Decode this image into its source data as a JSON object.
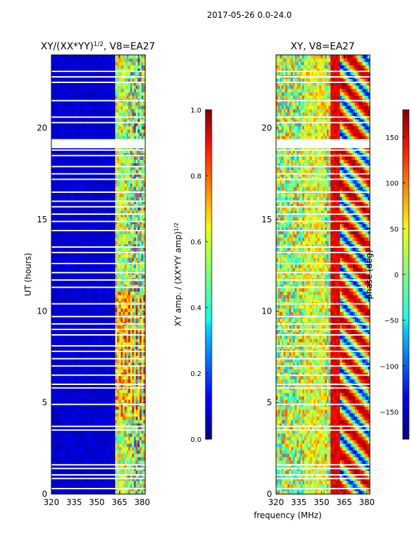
{
  "figure_title": "2017-05-26 0.0-24.0",
  "xlabel_shared": "frequency (MHz)",
  "chart_data": [
    {
      "type": "heatmap",
      "title": "XY/(XX*YY)",
      "title_sup": "1/2",
      "title_suffix": ", V8=EA27",
      "xlabel": "",
      "ylabel": "UT (hours)",
      "xlim": [
        320,
        382
      ],
      "ylim": [
        0,
        24
      ],
      "xticks": [
        320,
        335,
        350,
        365,
        380
      ],
      "yticks": [
        0,
        5,
        10,
        15,
        20
      ],
      "colorbar": {
        "label": "XY amp. / (XX*YY amp)",
        "label_sup": "1/2",
        "range": [
          0.0,
          1.0
        ],
        "ticks": [
          "0.0",
          "0.2",
          "0.4",
          "0.6",
          "0.8",
          "1.0"
        ],
        "colormap": "jet"
      },
      "flagged_hours": [
        0.3,
        0.85,
        1.05,
        1.4,
        1.6,
        3.5,
        3.7,
        4.9,
        5.8,
        6.0,
        6.5,
        7.0,
        7.4,
        7.8,
        8.1,
        8.7,
        9.0,
        9.3,
        9.7,
        10.4,
        11.3,
        11.7,
        12.1,
        12.6,
        13.2,
        13.5,
        14.4,
        14.9,
        15.3,
        15.7,
        16.0,
        16.5,
        17.2,
        17.5,
        17.9,
        18.5,
        18.8,
        20.3,
        20.6,
        21.5,
        22.5,
        22.8,
        23.1
      ],
      "flagged_band_hours": [
        18.9,
        19.4
      ],
      "bright_band_mhz": [
        362,
        381
      ]
    },
    {
      "type": "heatmap",
      "title": "XY, V8=EA27",
      "xlabel": "frequency (MHz)",
      "ylabel": "",
      "xlim": [
        320,
        382
      ],
      "ylim": [
        0,
        24
      ],
      "xticks": [
        320,
        335,
        350,
        365,
        380
      ],
      "yticks": [
        0,
        5,
        10,
        15,
        20
      ],
      "colorbar": {
        "label": "phase (deg)",
        "range": [
          -180,
          180
        ],
        "ticks": [
          "150",
          "100",
          "50",
          "0",
          "−50",
          "−100",
          "−150"
        ],
        "colormap": "jet"
      },
      "flagged_hours": [
        0.3,
        0.85,
        1.05,
        1.4,
        1.6,
        3.5,
        3.7,
        4.9,
        5.8,
        6.0,
        6.5,
        7.0,
        7.4,
        7.8,
        8.1,
        8.7,
        9.0,
        9.3,
        9.7,
        10.4,
        11.3,
        11.7,
        12.1,
        12.6,
        13.2,
        13.5,
        14.4,
        14.9,
        15.3,
        15.7,
        16.0,
        16.5,
        17.2,
        17.5,
        17.9,
        18.5,
        18.8,
        20.3,
        20.6,
        21.5,
        22.5,
        22.8,
        23.1
      ],
      "flagged_band_hours": [
        18.9,
        19.4
      ]
    }
  ]
}
